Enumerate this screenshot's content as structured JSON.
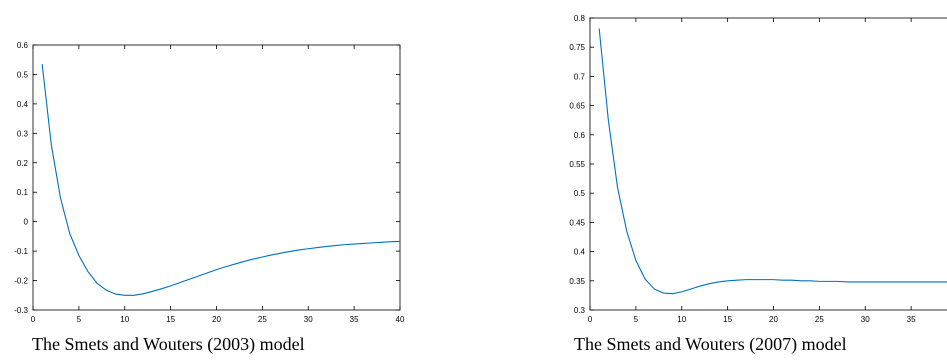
{
  "captions": {
    "left": "The Smets and Wouters (2003) model",
    "right": "The Smets and Wouters (2007) model"
  },
  "colors": {
    "line": "#0072bd",
    "axis": "#000000"
  },
  "chart_data": [
    {
      "type": "line",
      "caption": "The Smets and Wouters (2003) model",
      "xlim": [
        0,
        40
      ],
      "ylim": [
        -0.3,
        0.6
      ],
      "xticks": [
        0,
        5,
        10,
        15,
        20,
        25,
        30,
        35,
        40
      ],
      "yticks": [
        -0.3,
        -0.2,
        -0.1,
        0,
        0.1,
        0.2,
        0.3,
        0.4,
        0.5,
        0.6
      ],
      "grid": false,
      "series": [
        {
          "x": [
            1,
            2,
            3,
            4,
            5,
            6,
            7,
            8,
            9,
            10,
            11,
            12,
            13,
            14,
            15,
            16,
            17,
            18,
            19,
            20,
            21,
            22,
            23,
            24,
            25,
            26,
            27,
            28,
            29,
            30,
            31,
            32,
            33,
            34,
            35,
            36,
            37,
            38,
            39,
            40
          ],
          "y": [
            0.535,
            0.26,
            0.08,
            -0.04,
            -0.115,
            -0.17,
            -0.21,
            -0.233,
            -0.246,
            -0.25,
            -0.25,
            -0.245,
            -0.237,
            -0.228,
            -0.218,
            -0.207,
            -0.196,
            -0.185,
            -0.174,
            -0.163,
            -0.153,
            -0.144,
            -0.135,
            -0.127,
            -0.12,
            -0.113,
            -0.107,
            -0.101,
            -0.096,
            -0.092,
            -0.088,
            -0.084,
            -0.081,
            -0.078,
            -0.076,
            -0.074,
            -0.072,
            -0.07,
            -0.068,
            -0.067
          ]
        }
      ]
    },
    {
      "type": "line",
      "caption": "The Smets and Wouters (2007) model",
      "xlim": [
        0,
        40
      ],
      "ylim": [
        0.3,
        0.8
      ],
      "xticks": [
        0,
        5,
        10,
        15,
        20,
        25,
        30,
        35
      ],
      "yticks": [
        0.3,
        0.35,
        0.4,
        0.45,
        0.5,
        0.55,
        0.6,
        0.65,
        0.7,
        0.75,
        0.8
      ],
      "grid": false,
      "series": [
        {
          "x": [
            1,
            2,
            3,
            4,
            5,
            6,
            7,
            8,
            9,
            10,
            11,
            12,
            13,
            14,
            15,
            16,
            17,
            18,
            19,
            20,
            21,
            22,
            23,
            24,
            25,
            26,
            27,
            28,
            29,
            30,
            31,
            32,
            33,
            34,
            35,
            36,
            37,
            38,
            39,
            40
          ],
          "y": [
            0.782,
            0.625,
            0.51,
            0.435,
            0.385,
            0.353,
            0.336,
            0.329,
            0.328,
            0.331,
            0.336,
            0.341,
            0.345,
            0.348,
            0.35,
            0.351,
            0.352,
            0.352,
            0.352,
            0.352,
            0.351,
            0.351,
            0.35,
            0.35,
            0.349,
            0.349,
            0.349,
            0.348,
            0.348,
            0.348,
            0.348,
            0.348,
            0.348,
            0.348,
            0.348,
            0.348,
            0.348,
            0.348,
            0.348,
            0.348
          ]
        }
      ]
    }
  ]
}
